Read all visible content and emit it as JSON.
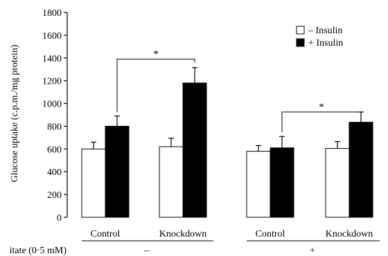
{
  "chart_data": {
    "type": "bar",
    "title": "",
    "ylabel": "Glucose uptake (c.p.m./mg protein)",
    "ylim": [
      0,
      1800
    ],
    "yticks": [
      0,
      200,
      400,
      600,
      800,
      1000,
      1200,
      1400,
      1600,
      1800
    ],
    "grid": false,
    "legend_position": "top-right",
    "categories": [
      "Control",
      "Knockdown",
      "Control",
      "Knockdown"
    ],
    "factor": {
      "label": "itate (0·5 mM)",
      "levels": [
        {
          "label": "–",
          "categories": [
            0,
            1
          ]
        },
        {
          "label": "+",
          "categories": [
            2,
            3
          ]
        }
      ]
    },
    "series": [
      {
        "name": "– Insulin",
        "color": "#ffffff",
        "values": [
          600,
          620,
          580,
          605
        ],
        "errors": [
          60,
          75,
          50,
          60
        ]
      },
      {
        "name": "+ Insulin",
        "color": "#000000",
        "values": [
          800,
          1180,
          610,
          835
        ],
        "errors": [
          90,
          135,
          100,
          90
        ]
      }
    ],
    "annotations": [
      {
        "text": "*",
        "from": [
          0,
          1
        ],
        "to": [
          1,
          1
        ],
        "y": 1390
      },
      {
        "text": "*",
        "from": [
          2,
          1
        ],
        "to": [
          3,
          1
        ],
        "y": 925
      }
    ]
  }
}
